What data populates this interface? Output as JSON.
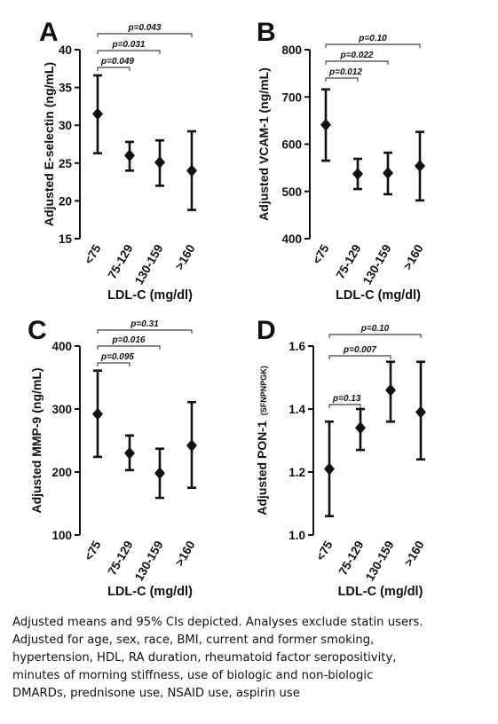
{
  "chart_data": [
    {
      "type": "errorbar",
      "panel_letter": "A",
      "ylabel": "Adjusted E-selectin (ng/mL)",
      "ylabel_sub": "",
      "xlabel": "LDL-C (mg/dl)",
      "categories": [
        "<75",
        "75-129",
        "130-159",
        ">160"
      ],
      "values": [
        31.5,
        26.0,
        25.1,
        24.0
      ],
      "ci_lower": [
        26.3,
        24.0,
        22.0,
        18.8
      ],
      "ci_upper": [
        36.6,
        27.8,
        28.0,
        29.2
      ],
      "ylim": [
        15,
        40
      ],
      "yticks": [
        "15",
        "20",
        "25",
        "30",
        "35",
        "40"
      ],
      "ytick_values": [
        15,
        20,
        25,
        30,
        35,
        40
      ],
      "comparisons": [
        {
          "label": "p=0.049",
          "to_category": "75-129"
        },
        {
          "label": "p=0.031",
          "to_category": "130-159"
        },
        {
          "label": "p=0.043",
          "to_category": ">160"
        }
      ]
    },
    {
      "type": "errorbar",
      "panel_letter": "B",
      "ylabel": "Adjusted VCAM-1 (ng/mL)",
      "ylabel_sub": "",
      "xlabel": "LDL-C (mg/dl)",
      "categories": [
        "<75",
        "75-129",
        "130-159",
        ">160"
      ],
      "values": [
        641,
        537,
        539,
        554
      ],
      "ci_lower": [
        565,
        505,
        494,
        481
      ],
      "ci_upper": [
        716,
        569,
        582,
        626
      ],
      "ylim": [
        400,
        800
      ],
      "yticks": [
        "400",
        "500",
        "600",
        "700",
        "800"
      ],
      "ytick_values": [
        400,
        500,
        600,
        700,
        800
      ],
      "comparisons": [
        {
          "label": "p=0.012",
          "to_category": "75-129"
        },
        {
          "label": "p=0.022",
          "to_category": "130-159"
        },
        {
          "label": "p=0.10",
          "to_category": ">160"
        }
      ]
    },
    {
      "type": "errorbar",
      "panel_letter": "C",
      "ylabel": "Adjusted MMP-9 (ng/mL)",
      "ylabel_sub": "",
      "xlabel": "LDL-C (mg/dl)",
      "categories": [
        "<75",
        "75-129",
        "130-159",
        ">160"
      ],
      "values": [
        292,
        230,
        198,
        242
      ],
      "ci_lower": [
        224,
        203,
        159,
        175
      ],
      "ci_upper": [
        361,
        258,
        237,
        311
      ],
      "ylim": [
        100,
        400
      ],
      "yticks": [
        "100",
        "200",
        "300",
        "400"
      ],
      "ytick_values": [
        100,
        200,
        300,
        400
      ],
      "comparisons": [
        {
          "label": "p=0.095",
          "to_category": "75-129"
        },
        {
          "label": "p=0.016",
          "to_category": "130-159"
        },
        {
          "label": "p=0.31",
          "to_category": ">160"
        }
      ]
    },
    {
      "type": "errorbar",
      "panel_letter": "D",
      "ylabel": "Adjusted PON-1",
      "ylabel_sub": "(SFNPNPGK)",
      "xlabel": "LDL-C (mg/dl)",
      "categories": [
        "<75",
        "75-129",
        "130-159",
        ">160"
      ],
      "values": [
        1.21,
        1.34,
        1.46,
        1.39
      ],
      "ci_lower": [
        1.06,
        1.27,
        1.36,
        1.24
      ],
      "ci_upper": [
        1.36,
        1.4,
        1.55,
        1.55
      ],
      "ylim": [
        1.0,
        1.6
      ],
      "yticks": [
        "1.0",
        "1.2",
        "1.4",
        "1.6"
      ],
      "ytick_values": [
        1.0,
        1.2,
        1.4,
        1.6
      ],
      "comparisons": [
        {
          "label": "p=0.13",
          "to_category": "75-129"
        },
        {
          "label": "p=0.007",
          "to_category": "130-159"
        },
        {
          "label": "p=0.10",
          "to_category": ">160"
        }
      ]
    }
  ],
  "caption": {
    "lines": [
      "Adjusted means and 95% CIs depicted.  Analyses exclude statin users.",
      "Adjusted for age, sex, race, BMI, current and former smoking,",
      "hypertension, HDL, RA duration, rheumatoid factor seropositivity,",
      "minutes of morning stiffness, use of biologic and non-biologic",
      "DMARDs, prednisone use, NSAID use, aspirin use"
    ]
  },
  "colors": {
    "ink": "#111111",
    "background": "#ffffff"
  }
}
